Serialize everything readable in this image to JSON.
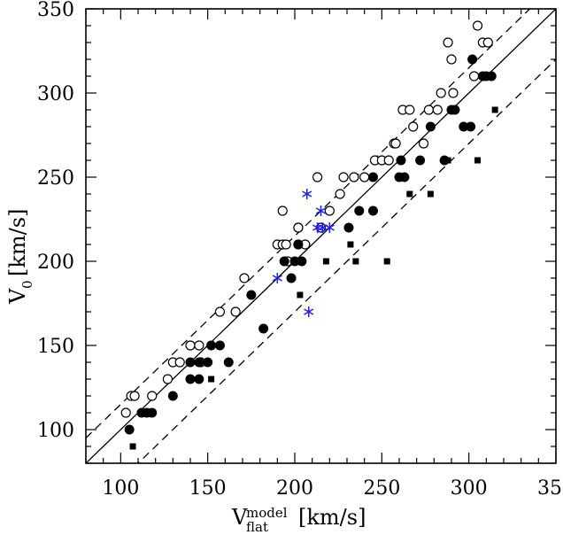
{
  "chart_data": {
    "type": "scatter",
    "title": "",
    "xlim": [
      80,
      350
    ],
    "ylim": [
      80,
      350
    ],
    "x_ticks": [
      100,
      150,
      200,
      250,
      300,
      350
    ],
    "y_ticks": [
      100,
      150,
      200,
      250,
      300,
      350
    ],
    "x_tick_labels": [
      "100",
      "150",
      "200",
      "250",
      "300",
      "350"
    ],
    "y_tick_labels": [
      "100",
      "150",
      "200",
      "250",
      "300",
      "350"
    ],
    "xlabel": {
      "main": "V",
      "superscript": "model",
      "subscript": "flat",
      "units": "[km/s]"
    },
    "ylabel": {
      "main": "V",
      "subscript": "0",
      "units": "[km/s]"
    },
    "grid": false,
    "legend": "none",
    "colors": {
      "black": "#000000",
      "blue": "#1f1fe6"
    },
    "reference_lines": [
      {
        "style": "solid",
        "slope": 1,
        "offset": 0
      },
      {
        "style": "dashed",
        "slope": 1,
        "offset": 15
      },
      {
        "style": "dashed",
        "slope": 1,
        "offset": -30
      }
    ],
    "series": [
      {
        "marker": "open-circle",
        "color": "#000000",
        "points": [
          [
            103,
            110
          ],
          [
            106,
            120
          ],
          [
            108,
            120
          ],
          [
            118,
            120
          ],
          [
            127,
            130
          ],
          [
            130,
            140
          ],
          [
            134,
            140
          ],
          [
            140,
            150
          ],
          [
            145,
            150
          ],
          [
            146,
            140
          ],
          [
            157,
            170
          ],
          [
            166,
            170
          ],
          [
            171,
            190
          ],
          [
            190,
            210
          ],
          [
            193,
            210
          ],
          [
            193,
            230
          ],
          [
            195,
            210
          ],
          [
            196,
            200
          ],
          [
            202,
            210
          ],
          [
            202,
            220
          ],
          [
            202,
            220
          ],
          [
            206,
            210
          ],
          [
            213,
            250
          ],
          [
            215,
            220
          ],
          [
            220,
            230
          ],
          [
            226,
            240
          ],
          [
            228,
            250
          ],
          [
            234,
            250
          ],
          [
            240,
            250
          ],
          [
            246,
            260
          ],
          [
            250,
            260
          ],
          [
            254,
            260
          ],
          [
            257,
            270
          ],
          [
            258,
            270
          ],
          [
            262,
            290
          ],
          [
            266,
            290
          ],
          [
            268,
            280
          ],
          [
            274,
            270
          ],
          [
            277,
            290
          ],
          [
            282,
            290
          ],
          [
            284,
            300
          ],
          [
            288,
            330
          ],
          [
            290,
            320
          ],
          [
            291,
            300
          ],
          [
            303,
            310
          ],
          [
            305,
            340
          ],
          [
            308,
            330
          ],
          [
            311,
            330
          ]
        ]
      },
      {
        "marker": "filled-circle",
        "color": "#000000",
        "points": [
          [
            105,
            100
          ],
          [
            112,
            110
          ],
          [
            115,
            110
          ],
          [
            118,
            110
          ],
          [
            130,
            120
          ],
          [
            140,
            140
          ],
          [
            140,
            130
          ],
          [
            145,
            140
          ],
          [
            145,
            130
          ],
          [
            150,
            140
          ],
          [
            152,
            150
          ],
          [
            157,
            150
          ],
          [
            162,
            140
          ],
          [
            175,
            180
          ],
          [
            182,
            160
          ],
          [
            194,
            200
          ],
          [
            198,
            190
          ],
          [
            200,
            200
          ],
          [
            202,
            210
          ],
          [
            204,
            200
          ],
          [
            231,
            220
          ],
          [
            237,
            230
          ],
          [
            245,
            250
          ],
          [
            245,
            230
          ],
          [
            260,
            250
          ],
          [
            261,
            260
          ],
          [
            263,
            250
          ],
          [
            272,
            260
          ],
          [
            278,
            280
          ],
          [
            286,
            260
          ],
          [
            290,
            290
          ],
          [
            292,
            290
          ],
          [
            297,
            280
          ],
          [
            301,
            280
          ],
          [
            302,
            320
          ],
          [
            308,
            310
          ],
          [
            310,
            310
          ],
          [
            313,
            310
          ]
        ]
      },
      {
        "marker": "filled-square",
        "color": "#000000",
        "points": [
          [
            107,
            90
          ],
          [
            152,
            130
          ],
          [
            203,
            180
          ],
          [
            218,
            200
          ],
          [
            232,
            210
          ],
          [
            235,
            200
          ],
          [
            253,
            200
          ],
          [
            266,
            240
          ],
          [
            278,
            240
          ],
          [
            288,
            260
          ],
          [
            305,
            260
          ],
          [
            315,
            290
          ]
        ]
      },
      {
        "marker": "asterisk",
        "color": "#1f1fe6",
        "points": [
          [
            190,
            190
          ],
          [
            207,
            240
          ],
          [
            208,
            170
          ],
          [
            213,
            220
          ],
          [
            215,
            230
          ],
          [
            216,
            220
          ],
          [
            220,
            220
          ]
        ]
      }
    ]
  }
}
